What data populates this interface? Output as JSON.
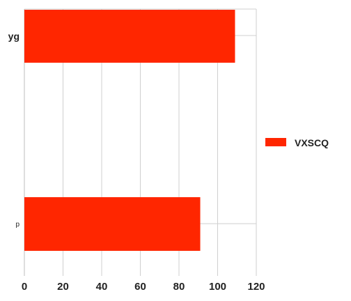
{
  "chart_data": {
    "type": "bar",
    "orientation": "horizontal",
    "categories": [
      "yg",
      "p"
    ],
    "series": [
      {
        "name": "VXSCQ",
        "values": [
          109,
          91
        ],
        "color": "#ff2600"
      }
    ],
    "xlim": [
      0,
      120
    ],
    "xticks": [
      0,
      20,
      40,
      60,
      80,
      100,
      120
    ],
    "grid": true,
    "legend": "right"
  }
}
